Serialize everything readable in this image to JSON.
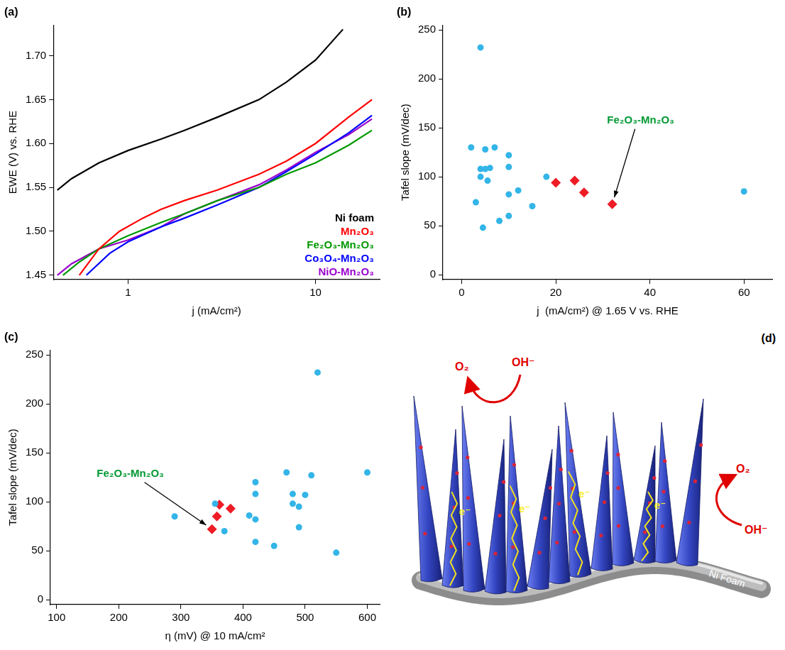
{
  "chart_data": [
    {
      "type": "line",
      "title": "(a)",
      "log": "x",
      "grid": false,
      "legend": "lower right",
      "x_label": "j (mA/cm²)",
      "y_label": "EWE (V) vs. RHE",
      "xlim": [
        0.4,
        22
      ],
      "xticks": [
        1,
        10
      ],
      "ylim": [
        1.445,
        1.735
      ],
      "yticks": [
        1.45,
        {
          "value": 1.5,
          "label": "1.50"
        },
        1.55,
        {
          "value": 1.6,
          "label": "1.60"
        },
        1.65,
        {
          "value": 1.7,
          "label": "1.70"
        }
      ],
      "series": [
        {
          "name": "Ni foam",
          "color": "#000000",
          "x": [
            0.42,
            0.5,
            0.7,
            1,
            1.5,
            2,
            3,
            5,
            7,
            10,
            14
          ],
          "values": [
            1.547,
            1.56,
            1.578,
            1.592,
            1.605,
            1.615,
            1.63,
            1.65,
            1.67,
            1.695,
            1.73
          ]
        },
        {
          "name": "Mn₂O₃",
          "color": "#ff0000",
          "x": [
            0.55,
            0.7,
            0.9,
            1.2,
            1.5,
            2,
            3,
            5,
            7,
            10,
            15,
            20
          ],
          "values": [
            1.45,
            1.48,
            1.5,
            1.515,
            1.525,
            1.535,
            1.547,
            1.565,
            1.58,
            1.6,
            1.63,
            1.65
          ]
        },
        {
          "name": "Fe₂O₃-Mn₂O₃",
          "color": "#009900",
          "x": [
            0.45,
            0.55,
            0.7,
            1,
            1.5,
            2,
            3,
            5,
            7,
            10,
            15,
            20
          ],
          "values": [
            1.45,
            1.465,
            1.48,
            1.495,
            1.51,
            1.52,
            1.535,
            1.55,
            1.565,
            1.578,
            1.598,
            1.615
          ]
        },
        {
          "name": "Co₃O₄-Mn₂O₃",
          "color": "#0000ff",
          "x": [
            0.6,
            0.8,
            1,
            1.5,
            2,
            3,
            5,
            7,
            10,
            15,
            20
          ],
          "values": [
            1.45,
            1.475,
            1.488,
            1.505,
            1.515,
            1.53,
            1.55,
            1.568,
            1.588,
            1.612,
            1.632
          ]
        },
        {
          "name": "NiO-Mn₂O₃",
          "color": "#9900cc",
          "x": [
            0.42,
            0.5,
            0.7,
            1,
            1.5,
            2,
            3,
            5,
            7,
            10,
            15,
            20
          ],
          "values": [
            1.45,
            1.463,
            1.48,
            1.49,
            1.505,
            1.52,
            1.535,
            1.553,
            1.57,
            1.59,
            1.61,
            1.628
          ]
        }
      ]
    },
    {
      "type": "scatter",
      "title": "(b)",
      "grid": false,
      "x_label": "j  (mA/cm²) @ 1.65 V vs. RHE",
      "y_label": "Tafel slope (mV/dec)",
      "xlim": [
        -4,
        66
      ],
      "xticks": [
        0,
        20,
        40,
        60
      ],
      "ylim": [
        -5,
        255
      ],
      "yticks": [
        0,
        50,
        100,
        150,
        200,
        250
      ],
      "series": [
        {
          "color": "#33b5e8",
          "marker": "circle",
          "x": [
            2,
            3,
            4,
            4,
            4,
            4.5,
            5,
            5,
            5.5,
            6,
            7,
            8,
            10,
            10,
            10,
            10,
            12,
            15,
            18,
            60
          ],
          "values": [
            130,
            74,
            232,
            108,
            100,
            48,
            108,
            128,
            96,
            109,
            130,
            55,
            122,
            110,
            82,
            60,
            86,
            70,
            100,
            85
          ]
        },
        {
          "color": "#ee1c25",
          "marker": "diamond",
          "x": [
            20,
            24,
            26,
            32
          ],
          "values": [
            94,
            96,
            84,
            72
          ],
          "annotations": [
            {
              "text": "Fe₂O₃-Mn₂O₃",
              "color": "#009933",
              "x": 32,
              "y": 72
            }
          ]
        }
      ]
    },
    {
      "type": "scatter",
      "title": "(c)",
      "grid": false,
      "x_label": "η (mV) @ 10 mA/cm²",
      "y_label": "Tafel slope (mV/dec)",
      "xlim": [
        90,
        620
      ],
      "xticks": [
        100,
        200,
        300,
        400,
        500,
        600
      ],
      "ylim": [
        -5,
        255
      ],
      "yticks": [
        0,
        50,
        100,
        150,
        200,
        250
      ],
      "series": [
        {
          "color": "#33b5e8",
          "marker": "circle",
          "x": [
            290,
            355,
            370,
            410,
            420,
            420,
            420,
            420,
            450,
            470,
            480,
            480,
            490,
            490,
            500,
            510,
            520,
            550,
            600
          ],
          "values": [
            85,
            98,
            70,
            86,
            120,
            108,
            82,
            59,
            55,
            130,
            108,
            98,
            95,
            74,
            107,
            127,
            232,
            48,
            130
          ]
        },
        {
          "color": "#ee1c25",
          "marker": "diamond",
          "x": [
            350,
            358,
            362,
            380
          ],
          "values": [
            72,
            85,
            97,
            93
          ],
          "annotations": [
            {
              "text": "Fe₂O₃-Mn₂O₃",
              "color": "#009933",
              "x": 350,
              "y": 72
            }
          ]
        }
      ]
    }
  ],
  "diagram": {
    "label": "(d)",
    "substrate": "Ni Foam",
    "product": "O₂",
    "reactant": "OH⁻",
    "electron": "e⁻"
  }
}
